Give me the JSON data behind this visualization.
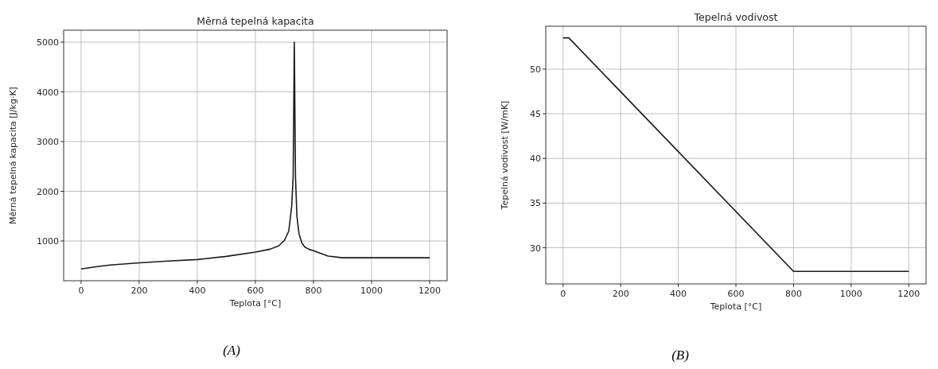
{
  "chart_data": [
    {
      "type": "line",
      "title": "Měrná tepelná kapacita",
      "xlabel": "Teplota [°C]",
      "ylabel": "Měrná tepelná kapacita [J/kg·K]",
      "annotations": [
        "(A)"
      ],
      "xlim": [
        -60,
        1260
      ],
      "ylim": [
        200,
        5240
      ],
      "xticks": [
        0,
        200,
        400,
        600,
        800,
        1000,
        1200
      ],
      "yticks": [
        1000,
        2000,
        3000,
        4000,
        5000
      ],
      "grid": true,
      "series": [
        {
          "color": "#1a1a1a",
          "x": [
            0,
            50,
            100,
            200,
            300,
            400,
            500,
            600,
            650,
            680,
            700,
            715,
            725,
            730,
            734,
            738,
            743,
            750,
            760,
            770,
            785,
            800,
            850,
            900,
            1000,
            1200
          ],
          "values": [
            436,
            480,
            515,
            561,
            595,
            626,
            690,
            775,
            834,
            900,
            1012,
            1200,
            1700,
            2290,
            5000,
            2290,
            1500,
            1150,
            960,
            880,
            830,
            804,
            697,
            662,
            662,
            662
          ]
        }
      ]
    },
    {
      "type": "line",
      "title": "Tepelná vodivost",
      "xlabel": "Teplota [°C]",
      "ylabel": "Tepelná vodivost [W/mK]",
      "annotations": [
        "(B)"
      ],
      "xlim": [
        -60,
        1260
      ],
      "ylim": [
        25.95,
        54.8
      ],
      "xticks": [
        0,
        200,
        400,
        600,
        800,
        1000,
        1200
      ],
      "yticks": [
        30,
        35,
        40,
        45,
        50
      ],
      "grid": true,
      "series": [
        {
          "color": "#1a1a1a",
          "x": [
            0,
            20,
            800,
            1200
          ],
          "values": [
            53.5,
            53.5,
            27.35,
            27.35
          ]
        }
      ]
    }
  ]
}
